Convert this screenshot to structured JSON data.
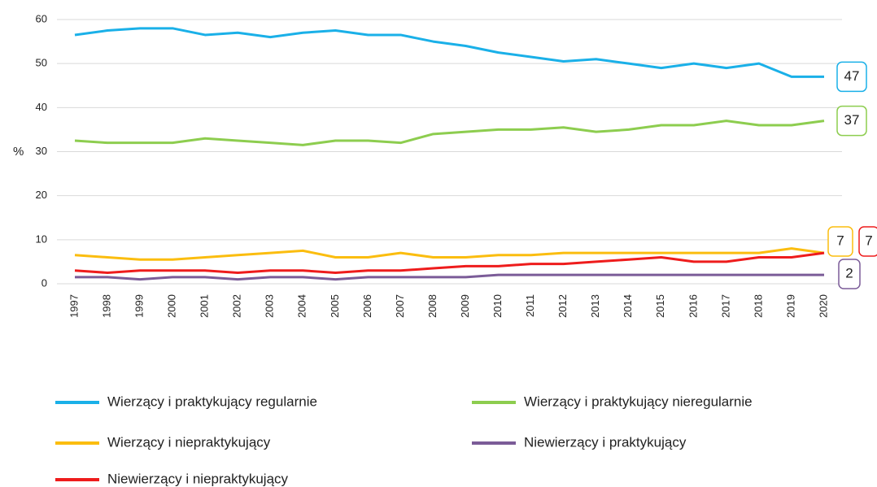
{
  "chart_data": {
    "type": "line",
    "y_label": "%",
    "categories": [
      "1997",
      "1998",
      "1999",
      "2000",
      "2001",
      "2002",
      "2003",
      "2004",
      "2005",
      "2006",
      "2007",
      "2008",
      "2009",
      "2010",
      "2011",
      "2012",
      "2013",
      "2014",
      "2015",
      "2016",
      "2017",
      "2018",
      "2019",
      "2020"
    ],
    "ylim": [
      0,
      60
    ],
    "yticks": [
      0,
      10,
      20,
      30,
      40,
      50,
      60
    ],
    "grid": true,
    "series": [
      {
        "name": "Wierzący i praktykujący regularnie",
        "color": "#1ab0e8",
        "values": [
          56.5,
          57.5,
          58,
          58,
          56.5,
          57,
          56,
          57,
          57.5,
          56.5,
          56.5,
          55,
          54,
          52.5,
          51.5,
          50.5,
          51,
          50,
          49,
          50,
          49,
          50,
          47,
          47
        ]
      },
      {
        "name": "Wierzący i praktykujący nieregularnie",
        "color": "#8dcd4f",
        "values": [
          32.5,
          32,
          32,
          32,
          33,
          32.5,
          32,
          31.5,
          32.5,
          32.5,
          32,
          34,
          34.5,
          35,
          35,
          35.5,
          34.5,
          35,
          36,
          36,
          37,
          36,
          36,
          37
        ]
      },
      {
        "name": "Wierzący i niepraktykujący",
        "color": "#fbbd0f",
        "values": [
          6.5,
          6,
          5.5,
          5.5,
          6,
          6.5,
          7,
          7.5,
          6,
          6,
          7,
          6,
          6,
          6.5,
          6.5,
          7,
          7,
          7,
          7,
          7,
          7,
          7,
          8,
          7
        ]
      },
      {
        "name": "Niewierzący i praktykujący",
        "color": "#7b5c98",
        "values": [
          1.5,
          1.5,
          1,
          1.5,
          1.5,
          1,
          1.5,
          1.5,
          1,
          1.5,
          1.5,
          1.5,
          1.5,
          2,
          2,
          2,
          2,
          2,
          2,
          2,
          2,
          2,
          2,
          2
        ]
      },
      {
        "name": "Niewierzący i niepraktykujący",
        "color": "#ee1c1c",
        "values": [
          3,
          2.5,
          3,
          3,
          3,
          2.5,
          3,
          3,
          2.5,
          3,
          3,
          3.5,
          4,
          4,
          4.5,
          4.5,
          5,
          5.5,
          6,
          5,
          5,
          6,
          6,
          7
        ]
      }
    ]
  }
}
